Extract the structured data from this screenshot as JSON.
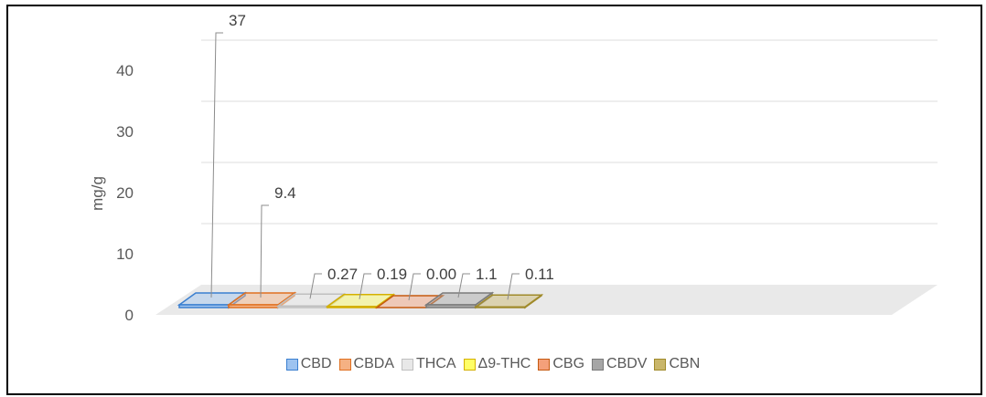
{
  "chart_data": {
    "type": "bar",
    "categories": [
      "CBD",
      "CBDA",
      "THCA",
      "Δ9-THC",
      "CBG",
      "CBDV",
      "CBN"
    ],
    "values": [
      37,
      9.4,
      0.27,
      0.19,
      0.0,
      1.1,
      0.11
    ],
    "data_labels": [
      "37",
      "9.4",
      "0.27",
      "0.19",
      "0.00",
      "1.1",
      "0.11"
    ],
    "ylabel": "mg/g",
    "yticks": [
      "0",
      "10",
      "20",
      "30",
      "40"
    ],
    "ylim": [
      0,
      40
    ],
    "grid": true,
    "legend_position": "bottom",
    "colors": [
      "#9dc3f0",
      "#f5b183",
      "#e8e8e8",
      "#ffff66",
      "#f4a07a",
      "#a6a6a6",
      "#c9b66a"
    ],
    "edge_colors": [
      "#3a7fd0",
      "#e07020",
      "#bfbfbf",
      "#d4b000",
      "#c55a11",
      "#7a7a7a",
      "#a08a2a"
    ]
  }
}
